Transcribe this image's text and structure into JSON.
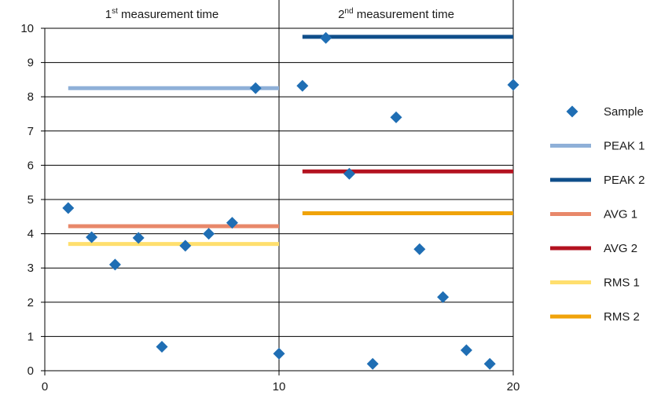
{
  "chart_data": {
    "type": "scatter",
    "xlim": [
      0,
      20
    ],
    "ylim": [
      0,
      10
    ],
    "x_ticks": [
      0,
      10,
      20
    ],
    "y_ticks": [
      0,
      1,
      2,
      3,
      4,
      5,
      6,
      7,
      8,
      9,
      10
    ],
    "grid": "horizontal",
    "legend_position": "right",
    "annotations": [
      {
        "base": "1",
        "sup": "st",
        "text": " measurement time",
        "x_center": 5
      },
      {
        "base": "2",
        "sup": "nd",
        "text": " measurement time",
        "x_center": 15
      }
    ],
    "colors": {
      "sample": "#1f6eb4",
      "peak1": "#8fb0d8",
      "peak2": "#0f4e8a",
      "avg1": "#e8886a",
      "avg2": "#b3121f",
      "rms1": "#ffdf6e",
      "rms2": "#f0a30a"
    },
    "series": [
      {
        "name": "Sample",
        "kind": "scatter",
        "color_key": "sample",
        "points": [
          [
            1,
            4.75
          ],
          [
            2,
            3.9
          ],
          [
            3,
            3.1
          ],
          [
            4,
            3.88
          ],
          [
            5,
            0.7
          ],
          [
            6,
            3.65
          ],
          [
            7,
            4.0
          ],
          [
            8,
            4.32
          ],
          [
            9,
            8.25
          ],
          [
            10,
            0.5
          ],
          [
            11,
            8.32
          ],
          [
            12,
            9.72
          ],
          [
            13,
            5.75
          ],
          [
            14,
            0.2
          ],
          [
            15,
            7.4
          ],
          [
            16,
            3.55
          ],
          [
            17,
            2.15
          ],
          [
            18,
            0.6
          ],
          [
            19,
            0.2
          ],
          [
            20,
            8.35
          ]
        ]
      },
      {
        "name": "PEAK 1",
        "kind": "hline",
        "color_key": "peak1",
        "x0": 1,
        "x1": 10,
        "y": 8.25
      },
      {
        "name": "PEAK 2",
        "kind": "hline",
        "color_key": "peak2",
        "x0": 11,
        "x1": 20,
        "y": 9.75
      },
      {
        "name": "AVG 1",
        "kind": "hline",
        "color_key": "avg1",
        "x0": 1,
        "x1": 10,
        "y": 4.22
      },
      {
        "name": "AVG 2",
        "kind": "hline",
        "color_key": "avg2",
        "x0": 11,
        "x1": 20,
        "y": 5.82
      },
      {
        "name": "RMS 1",
        "kind": "hline",
        "color_key": "rms1",
        "x0": 1,
        "x1": 10,
        "y": 3.7
      },
      {
        "name": "RMS 2",
        "kind": "hline",
        "color_key": "rms2",
        "x0": 11,
        "x1": 20,
        "y": 4.6
      }
    ]
  }
}
